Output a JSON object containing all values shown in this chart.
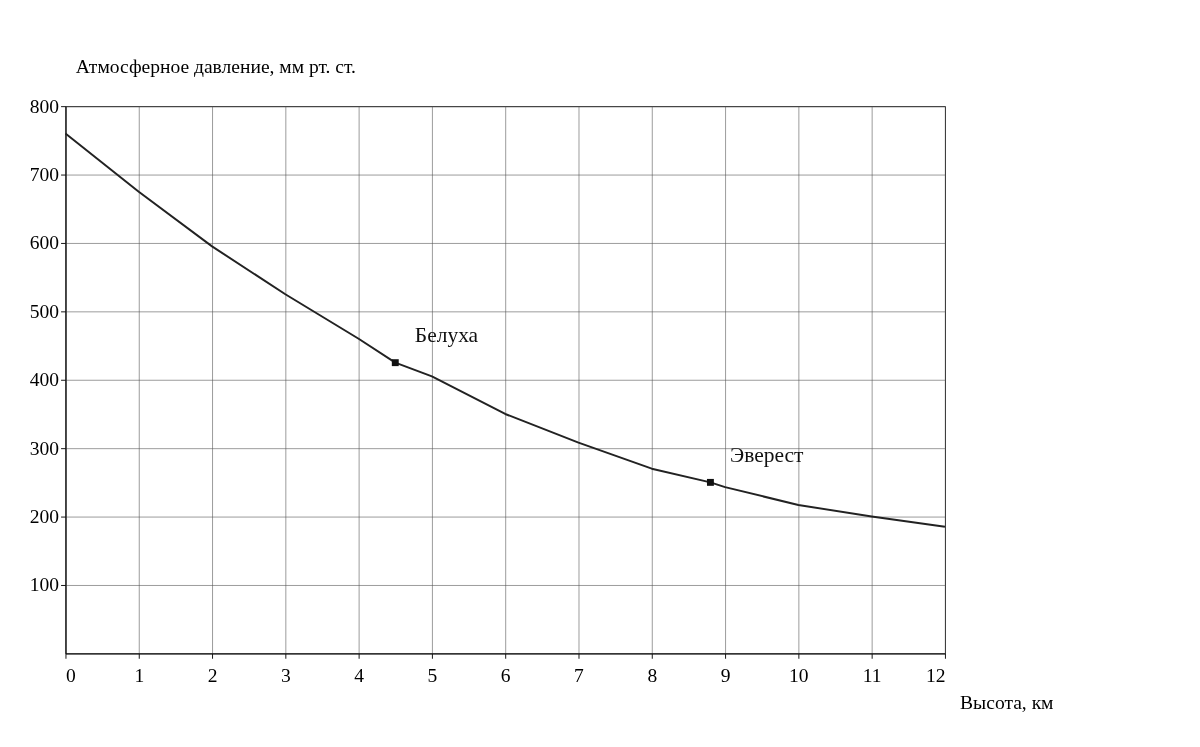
{
  "chart_data": {
    "type": "line",
    "xlabel": "Высота, км",
    "ylabel": "Атмосферное давление, мм  рт. ст.",
    "x": [
      0,
      1,
      2,
      3,
      4,
      4.5,
      5,
      6,
      7,
      8,
      8.8,
      9,
      10,
      11,
      12
    ],
    "series": [
      {
        "color": "#222222",
        "values": [
          760,
          675,
          595,
          525,
          460,
          425,
          405,
          350,
          308,
          270,
          250,
          243,
          217,
          200,
          185
        ]
      },
      {
        "type": "scatter",
        "marker": "square",
        "color": "#111111",
        "x": [
          4.5,
          8.8
        ],
        "values": [
          425,
          250
        ]
      }
    ],
    "xlim": [
      0,
      12
    ],
    "ylim": [
      0,
      800
    ],
    "xticks": [
      0,
      1,
      2,
      3,
      4,
      5,
      6,
      7,
      8,
      9,
      10,
      11,
      12
    ],
    "yticks": [
      100,
      200,
      300,
      400,
      500,
      600,
      700,
      800
    ],
    "annotations": [
      {
        "text": "Белуха",
        "x": 4.5,
        "y": 425
      },
      {
        "text": "Эверест",
        "x": 8.8,
        "y": 250
      }
    ],
    "grid": true,
    "marker": "none",
    "line_style": "solid"
  }
}
